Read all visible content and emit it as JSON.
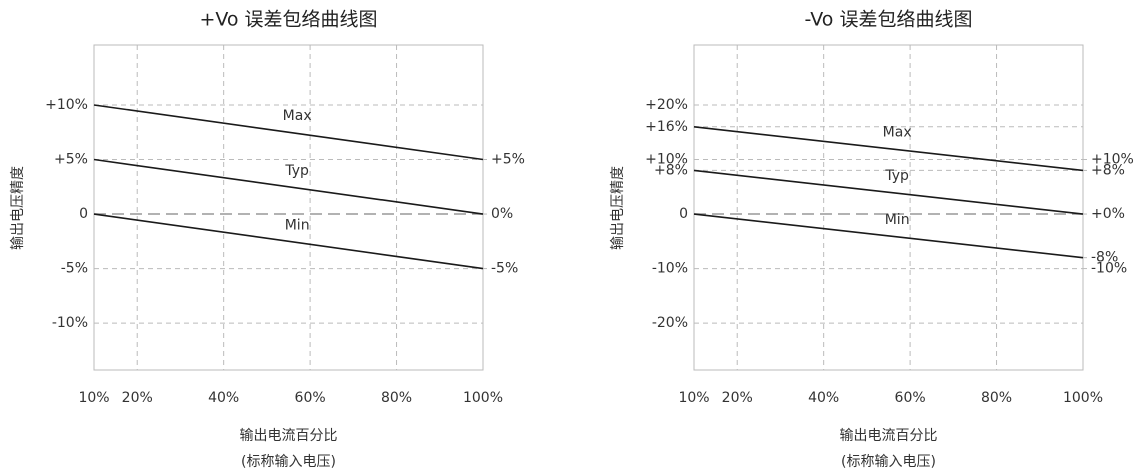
{
  "chart_data": [
    {
      "type": "line",
      "title": "+Vo 误差包络曲线图",
      "ylabel": "输出电压精度",
      "xlabel": [
        "输出电流百分比",
        "(标称输入电压)"
      ],
      "x": [
        10,
        100
      ],
      "series": [
        {
          "name": "Max",
          "color": "#1a1a1a",
          "values": [
            10,
            5
          ]
        },
        {
          "name": "Typ",
          "color": "#1a1a1a",
          "values": [
            5,
            0
          ]
        },
        {
          "name": "Min",
          "color": "#1a1a1a",
          "values": [
            0,
            -5
          ]
        }
      ],
      "xlim": [
        10,
        100
      ],
      "xticks": [
        {
          "value": 10,
          "label": "10%"
        },
        {
          "value": 20,
          "label": "20%"
        },
        {
          "value": 40,
          "label": "40%"
        },
        {
          "value": 60,
          "label": "60%"
        },
        {
          "value": 80,
          "label": "80%"
        },
        {
          "value": 100,
          "label": "100%"
        }
      ],
      "ylim": [
        -14.3,
        15.5
      ],
      "yticks": [
        {
          "value": 10,
          "label": "+10%"
        },
        {
          "value": 5,
          "label": "+5%"
        },
        0,
        {
          "value": -5,
          "label": "-5%"
        },
        {
          "value": -10,
          "label": "-10%"
        }
      ],
      "y2lim": [
        -14.3,
        15.5
      ],
      "y2ticks": [
        {
          "value": 5,
          "label": "+5%"
        },
        {
          "value": 0,
          "label": "0%"
        },
        {
          "value": -5,
          "label": "-5%"
        }
      ],
      "grid": true
    },
    {
      "type": "line",
      "title": "-Vo 误差包络曲线图",
      "ylabel": "输出电压精度",
      "xlabel": [
        "输出电流百分比",
        "(标称输入电压)"
      ],
      "x": [
        10,
        100
      ],
      "series": [
        {
          "name": "Max",
          "color": "#1a1a1a",
          "values": [
            16,
            8
          ]
        },
        {
          "name": "Typ",
          "color": "#1a1a1a",
          "values": [
            8,
            0
          ]
        },
        {
          "name": "Min",
          "color": "#1a1a1a",
          "values": [
            0,
            -8
          ]
        }
      ],
      "xlim": [
        10,
        100
      ],
      "xticks": [
        {
          "value": 10,
          "label": "10%"
        },
        {
          "value": 20,
          "label": "20%"
        },
        {
          "value": 40,
          "label": "40%"
        },
        {
          "value": 60,
          "label": "60%"
        },
        {
          "value": 80,
          "label": "80%"
        },
        {
          "value": 100,
          "label": "100%"
        }
      ],
      "ylim": [
        -28.6,
        31
      ],
      "yticks": [
        {
          "value": 20,
          "label": "+20%"
        },
        {
          "value": 16,
          "label": "+16%"
        },
        {
          "value": 10,
          "label": "+10%"
        },
        {
          "value": 8,
          "label": "+8%"
        },
        0,
        {
          "value": -10,
          "label": "-10%"
        },
        {
          "value": -20,
          "label": "-20%"
        }
      ],
      "y2lim": [
        -28.6,
        31
      ],
      "y2ticks": [
        {
          "value": 10,
          "label": "+10%"
        },
        {
          "value": 8,
          "label": "+8%"
        },
        {
          "value": 0,
          "label": "+0%"
        },
        {
          "value": -8,
          "label": "-8%"
        },
        {
          "value": -10,
          "label": "-10%"
        }
      ],
      "grid": true
    }
  ]
}
